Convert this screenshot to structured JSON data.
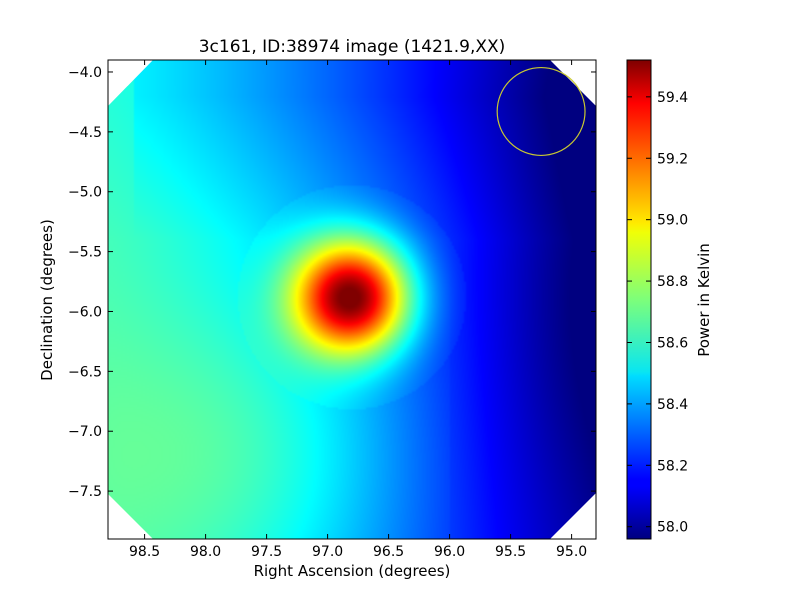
{
  "chart_data": {
    "type": "heatmap",
    "title": "3c161, ID:38974 image (1421.9,XX)",
    "xlabel": "Right Ascension (degrees)",
    "ylabel": "Declination (degrees)",
    "colorbar_label": "Power in Kelvin",
    "colormap": "jet",
    "x_inverted": true,
    "xlim": [
      98.8,
      94.8
    ],
    "ylim": [
      -7.9,
      -3.9
    ],
    "x_ticks": [
      98.5,
      98.0,
      97.5,
      97.0,
      96.5,
      96.0,
      95.5,
      95.0
    ],
    "x_tick_labels": [
      "98.5",
      "98.0",
      "97.5",
      "97.0",
      "96.5",
      "96.0",
      "95.5",
      "95.0"
    ],
    "y_ticks": [
      -4.0,
      -4.5,
      -5.0,
      -5.5,
      -6.0,
      -6.5,
      -7.0,
      -7.5
    ],
    "y_tick_labels": [
      "−4.0",
      "−4.5",
      "−5.0",
      "−5.5",
      "−6.0",
      "−6.5",
      "−7.0",
      "−7.5"
    ],
    "value_range": [
      57.96,
      59.52
    ],
    "colorbar_ticks": [
      58.0,
      58.2,
      58.4,
      58.6,
      58.8,
      59.0,
      59.2,
      59.4
    ],
    "colorbar_tick_labels": [
      "58.0",
      "58.2",
      "58.4",
      "58.6",
      "58.8",
      "59.0",
      "59.2",
      "59.4"
    ],
    "peak": {
      "ra": 96.8,
      "dec": -5.88,
      "value": 59.52
    },
    "beam_circle": {
      "ra": 95.25,
      "dec": -4.33,
      "radius_deg": 0.36,
      "color": "#c8c832"
    },
    "colors": {
      "background": "#ffffff",
      "axes": "#000000"
    }
  }
}
